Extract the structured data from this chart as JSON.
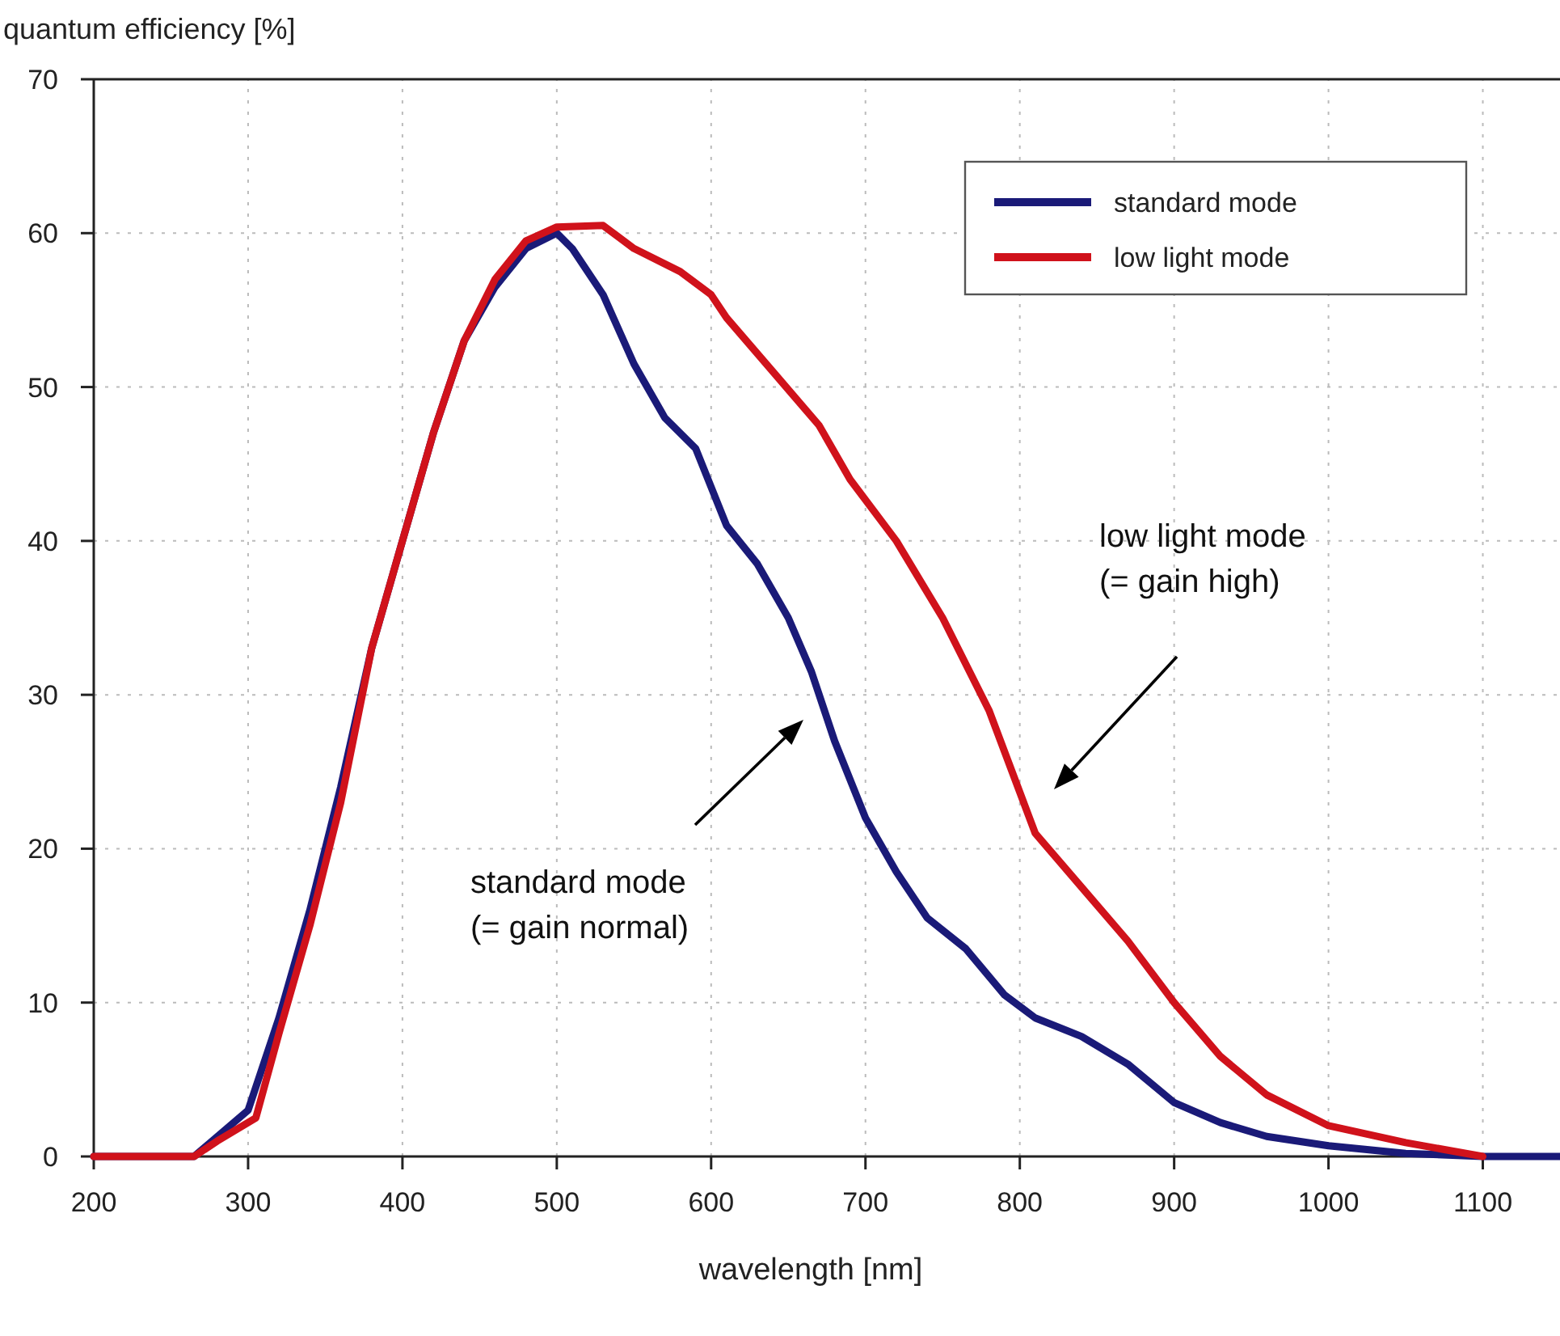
{
  "chart_data": {
    "type": "line",
    "xlabel": "wavelength [nm]",
    "ylabel": "quantum efficiency [%]",
    "xlim": [
      200,
      1150
    ],
    "xticks": [
      200,
      300,
      400,
      500,
      600,
      700,
      800,
      900,
      1000,
      1100
    ],
    "ylim": [
      0,
      70
    ],
    "yticks": [
      0,
      10,
      20,
      30,
      40,
      50,
      60,
      70
    ],
    "grid": true,
    "legend": "top right",
    "line_style": "solid",
    "marker": "none",
    "series": [
      {
        "name": "standard mode",
        "color": "#1a1a78",
        "x": [
          200,
          255,
          265,
          300,
          320,
          340,
          360,
          380,
          400,
          420,
          440,
          460,
          480,
          500,
          510,
          530,
          550,
          570,
          590,
          610,
          630,
          650,
          665,
          680,
          700,
          720,
          740,
          765,
          790,
          810,
          840,
          870,
          900,
          930,
          960,
          1000,
          1050,
          1100,
          1150
        ],
        "values": [
          0,
          0,
          0,
          3,
          9,
          16,
          24,
          33,
          40,
          47,
          53,
          56.5,
          59,
          60,
          59,
          56,
          51.5,
          48,
          46,
          41,
          38.5,
          35,
          31.5,
          27,
          22,
          18.5,
          15.5,
          13.5,
          10.5,
          9,
          7.8,
          6,
          3.5,
          2.2,
          1.3,
          0.7,
          0.2,
          0,
          0
        ]
      },
      {
        "name": "low light mode",
        "color": "#d0121b",
        "x": [
          200,
          255,
          265,
          280,
          305,
          320,
          340,
          360,
          380,
          400,
          420,
          440,
          460,
          480,
          500,
          530,
          550,
          580,
          600,
          610,
          640,
          670,
          690,
          720,
          750,
          780,
          810,
          840,
          870,
          900,
          930,
          960,
          1000,
          1050,
          1100
        ],
        "values": [
          0,
          0,
          0,
          1,
          2.5,
          8,
          15,
          23,
          33,
          40,
          47,
          53,
          57,
          59.5,
          60.4,
          60.5,
          59,
          57.5,
          56,
          54.5,
          51,
          47.5,
          44,
          40,
          35,
          29,
          21,
          17.5,
          14,
          10,
          6.5,
          4,
          2,
          0.9,
          0
        ]
      }
    ],
    "annotations": [
      "standard mode\n(= gain normal)",
      "low light mode\n(= gain high)"
    ]
  }
}
